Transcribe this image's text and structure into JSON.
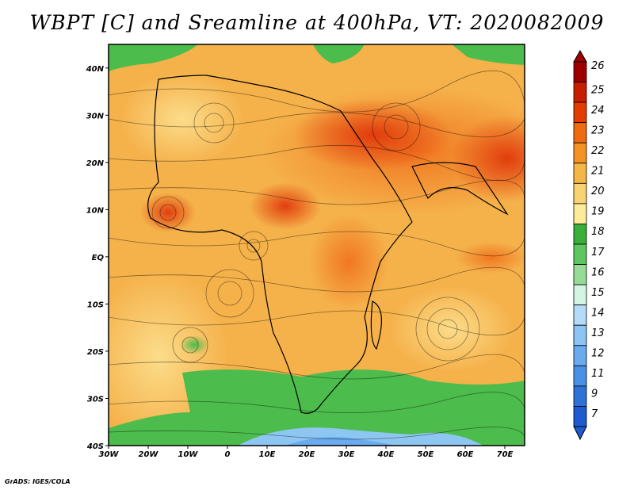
{
  "title": "WBPT [C] and Sreamline at 400hPa, VT: 2020082009",
  "footer": "GrADS: IGES/COLA",
  "map": {
    "lon_range": [
      -30,
      75
    ],
    "lat_range": [
      -40,
      45
    ],
    "lon_ticks": [
      {
        "value": -30,
        "label": "30W"
      },
      {
        "value": -20,
        "label": "20W"
      },
      {
        "value": -10,
        "label": "10W"
      },
      {
        "value": 0,
        "label": "0"
      },
      {
        "value": 10,
        "label": "10E"
      },
      {
        "value": 20,
        "label": "20E"
      },
      {
        "value": 30,
        "label": "30E"
      },
      {
        "value": 40,
        "label": "40E"
      },
      {
        "value": 50,
        "label": "50E"
      },
      {
        "value": 60,
        "label": "60E"
      },
      {
        "value": 70,
        "label": "70E"
      }
    ],
    "lat_ticks": [
      {
        "value": 40,
        "label": "40N"
      },
      {
        "value": 30,
        "label": "30N"
      },
      {
        "value": 20,
        "label": "20N"
      },
      {
        "value": 10,
        "label": "10N"
      },
      {
        "value": 0,
        "label": "EQ"
      },
      {
        "value": -10,
        "label": "10S"
      },
      {
        "value": -20,
        "label": "20S"
      },
      {
        "value": -30,
        "label": "30S"
      },
      {
        "value": -40,
        "label": "40S"
      }
    ]
  },
  "colorbar": {
    "labels": [
      "26",
      "25",
      "24",
      "23",
      "22",
      "21",
      "20",
      "19",
      "18",
      "17",
      "16",
      "15",
      "14",
      "13",
      "12",
      "11",
      "9",
      "7"
    ],
    "colors": [
      "#9e0000",
      "#c81e00",
      "#e43c00",
      "#f06a10",
      "#f49224",
      "#f5b648",
      "#f9d372",
      "#fcec9a",
      "#3aaf3a",
      "#5ec65e",
      "#96dc96",
      "#d4f4e4",
      "#b4dcf8",
      "#8cc4f4",
      "#6aaaee",
      "#4a90e4",
      "#2e72d8",
      "#1e5ad0"
    ]
  }
}
